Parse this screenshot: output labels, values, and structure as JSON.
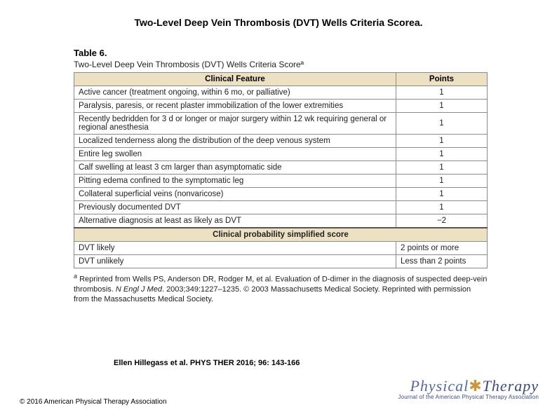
{
  "title": "Two-Level Deep Vein Thrombosis (DVT) Wells Criteria Scorea.",
  "table_label": "Table 6.",
  "table_caption": "Two-Level Deep Vein Thrombosis (DVT) Wells Criteria Scoreª",
  "header_feature": "Clinical Feature",
  "header_points": "Points",
  "rows": [
    {
      "feature": "Active cancer (treatment ongoing, within 6 mo, or palliative)",
      "points": "1"
    },
    {
      "feature": "Paralysis, paresis, or recent plaster immobilization of the lower extremities",
      "points": "1"
    },
    {
      "feature": "Recently bedridden for 3 d or longer or major surgery within 12 wk requiring general or regional anesthesia",
      "points": "1"
    },
    {
      "feature": "Localized tenderness along the distribution of the deep venous system",
      "points": "1"
    },
    {
      "feature": "Entire leg swollen",
      "points": "1"
    },
    {
      "feature": "Calf swelling at least 3 cm larger than asymptomatic side",
      "points": "1"
    },
    {
      "feature": "Pitting edema confined to the symptomatic leg",
      "points": "1"
    },
    {
      "feature": "Collateral superficial veins (nonvaricose)",
      "points": "1"
    },
    {
      "feature": "Previously documented DVT",
      "points": "1"
    },
    {
      "feature": "Alternative diagnosis at least as likely as DVT",
      "points": "−2"
    }
  ],
  "subheader": "Clinical probability simplified score",
  "prob_rows": [
    {
      "feature": "DVT likely",
      "points": "2 points or more"
    },
    {
      "feature": "DVT unlikely",
      "points": "Less than 2 points"
    }
  ],
  "footnote_pre": "Reprinted from Wells PS, Anderson DR, Rodger M, et al. Evaluation of D-dimer in the diagnosis of suspected deep-vein thrombosis. ",
  "footnote_ital": "N Engl J Med",
  "footnote_post": ". 2003;349:1227–1235. © 2003 Massachusetts Medical Society. Reprinted with permission from the Massachusetts Medical Society.",
  "citation": "Ellen Hillegass et al. PHYS THER 2016; 96: 143-166",
  "copyright": "© 2016 American Physical Therapy Association",
  "logo": {
    "word1": "Physical",
    "accent": "✱",
    "word2": "Therapy",
    "sub": "Journal of the American Physical Therapy Association"
  },
  "style": {
    "header_bg": "#ede1c4",
    "border_color": "#8a8a8a",
    "text_color": "#222222",
    "logo_color": "#3b4a7a",
    "accent_color": "#c9973f",
    "title_fontsize": 14,
    "body_fontsize": 11.5,
    "col_widths": [
      "auto",
      "130px"
    ]
  }
}
